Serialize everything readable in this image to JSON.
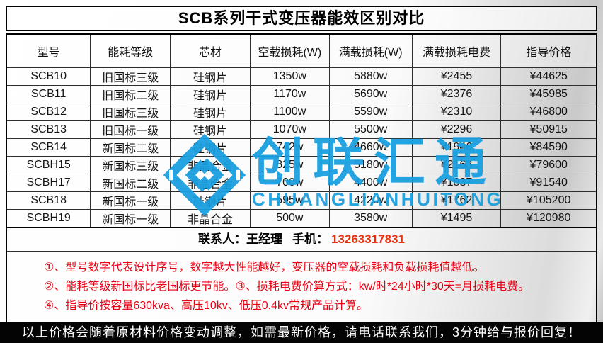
{
  "page": {
    "title": "SCB系列干式变压器能效区别对比"
  },
  "table": {
    "headers": [
      "型号",
      "能耗等级",
      "芯材",
      "空载损耗(W)",
      "满载损耗(W)",
      "满载损耗电费",
      "指导价格"
    ],
    "rows": [
      [
        "SCB10",
        "旧国标三级",
        "硅钢片",
        "1350w",
        "5880w",
        "¥2455",
        "¥44625"
      ],
      [
        "SCB11",
        "旧国标二级",
        "硅钢片",
        "1170w",
        "5690w",
        "¥2376",
        "¥45985"
      ],
      [
        "SCB12",
        "旧国标三级",
        "硅钢片",
        "1100w",
        "5590w",
        "¥2310",
        "¥46800"
      ],
      [
        "SCB13",
        "旧国标一级",
        "硅钢片",
        "1070w",
        "5500w",
        "¥2296",
        "¥50915"
      ],
      [
        "SCB14",
        "新国标二级",
        "硅钢片",
        "742w",
        "4660w",
        "¥1946",
        "¥84590"
      ],
      [
        "SCBH15",
        "新国标三级",
        "非晶合金",
        "825w",
        "5180w",
        "¥2163",
        "¥79600"
      ],
      [
        "SCBH17",
        "新国标二级",
        "非晶合金",
        "700w",
        "4400w",
        "¥1837",
        "¥91540"
      ],
      [
        "SCB18",
        "新国标一级",
        "硅钢片",
        "595w",
        "4220w",
        "¥1762",
        "¥105200"
      ],
      [
        "SCBH19",
        "新国标一级",
        "非晶合金",
        "500w",
        "3580w",
        "¥1495",
        "¥120980"
      ]
    ]
  },
  "contact": {
    "person": "联系人：王经理",
    "phone_label": "手机：",
    "phone": "13263317831"
  },
  "notes": [
    "①、型号数字代表设计序号，数字越大性能越好，变压器的空载损耗和负载损耗值越低。",
    "②、能耗等级新国标比老国标更节能。③、损耗电费价算方式：kw/时*24小时*30天=月损耗电费。",
    "④、指导价按容量630kva、高压10kv、低压0.4kv常规产品计算。"
  ],
  "footer": {
    "text": "以上价格会随着原材料价格变动调整，如需最新价格，请电话联系我们，3分钟给与报价回复！"
  },
  "watermark": {
    "brand_cn": "创联汇通",
    "brand_en": "CHUANGLIANHUITONG"
  },
  "colors": {
    "accent_blue": "#189FE0",
    "note_red": "#E60012",
    "phone_red": "#E8320E",
    "footer_bg": "#040404"
  }
}
